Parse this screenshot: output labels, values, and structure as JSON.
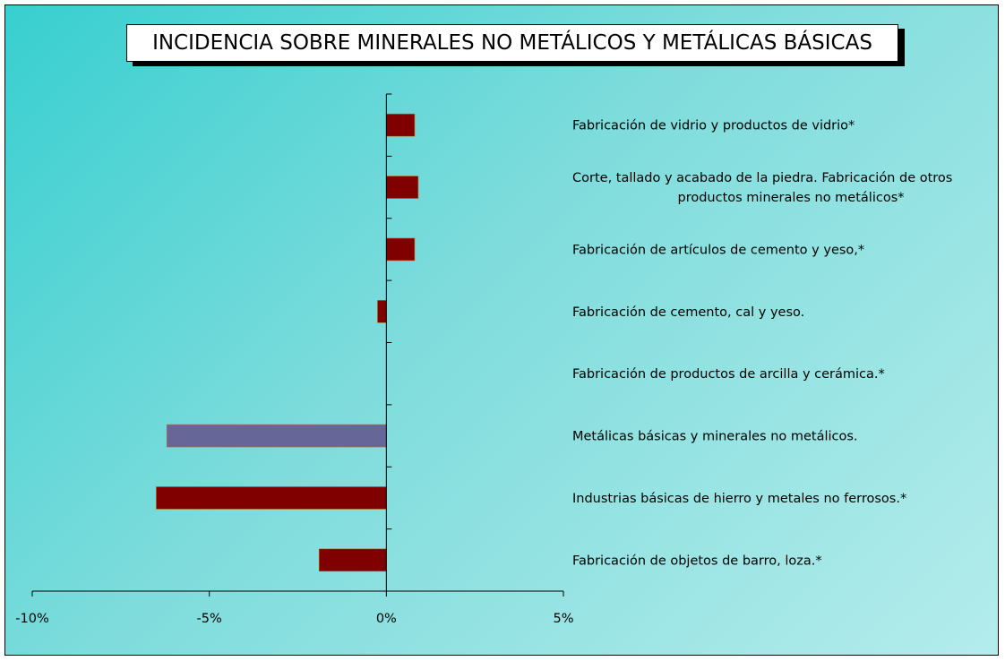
{
  "chart_data": {
    "type": "bar",
    "orientation": "horizontal",
    "title": "INCIDENCIA SOBRE MINERALES NO METÁLICOS Y METÁLICAS BÁSICAS",
    "categories": [
      [
        "Fabricación de vidrio y productos de vidrio*"
      ],
      [
        "Corte, tallado y acabado de la piedra. Fabricación de otros",
        "productos minerales no metálicos*"
      ],
      [
        "Fabricación de artículos de cemento y yeso,*"
      ],
      [
        "Fabricación de cemento, cal y yeso."
      ],
      [
        "Fabricación de productos de arcilla y cerámica.*"
      ],
      [
        "Metálicas básicas y minerales no metálicos."
      ],
      [
        "Industrias básicas de hierro y metales no ferrosos.*"
      ],
      [
        "Fabricación de objetos de barro, loza.*"
      ]
    ],
    "values": [
      0.8,
      0.9,
      0.8,
      -0.25,
      0.0,
      -6.2,
      -6.5,
      -1.9
    ],
    "bar_colors": [
      "#800000",
      "#800000",
      "#800000",
      "#800000",
      "#800000",
      "#666699",
      "#800000",
      "#800000"
    ],
    "xlim": [
      -10,
      5
    ],
    "x_ticks": [
      -10,
      -5,
      0,
      5
    ],
    "x_tick_labels": [
      "-10%",
      "-5%",
      "0%",
      "5%"
    ],
    "xlabel": "",
    "ylabel": "",
    "grid": false,
    "legend": "none"
  }
}
